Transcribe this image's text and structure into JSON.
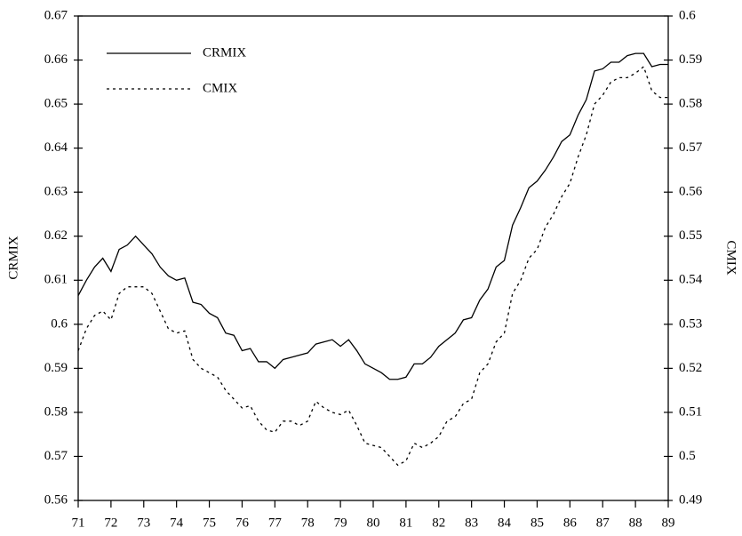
{
  "chart_data": {
    "type": "line",
    "x": [
      71,
      71.25,
      71.5,
      71.75,
      72,
      72.25,
      72.5,
      72.75,
      73,
      73.25,
      73.5,
      73.75,
      74,
      74.25,
      74.5,
      74.75,
      75,
      75.25,
      75.5,
      75.75,
      76,
      76.25,
      76.5,
      76.75,
      77,
      77.25,
      77.5,
      77.75,
      78,
      78.25,
      78.5,
      78.75,
      79,
      79.25,
      79.5,
      79.75,
      80,
      80.25,
      80.5,
      80.75,
      81,
      81.25,
      81.5,
      81.75,
      82,
      82.25,
      82.5,
      82.75,
      83,
      83.25,
      83.5,
      83.75,
      84,
      84.25,
      84.5,
      84.75,
      85,
      85.25,
      85.5,
      85.75,
      86,
      86.25,
      86.5,
      86.75,
      87,
      87.25,
      87.5,
      87.75,
      88,
      88.25,
      88.5,
      88.75,
      89
    ],
    "series": [
      {
        "name": "CRMIX",
        "color": "#000000",
        "style": "solid",
        "values": [
          0.6065,
          0.61,
          0.613,
          0.615,
          0.612,
          0.617,
          0.618,
          0.62,
          0.618,
          0.616,
          0.613,
          0.611,
          0.61,
          0.6105,
          0.605,
          0.6045,
          0.6025,
          0.6015,
          0.598,
          0.5975,
          0.594,
          0.5945,
          0.5915,
          0.5915,
          0.59,
          0.592,
          0.5925,
          0.593,
          0.5935,
          0.5955,
          0.596,
          0.5965,
          0.595,
          0.5965,
          0.594,
          0.591,
          0.59,
          0.589,
          0.5875,
          0.5875,
          0.588,
          0.591,
          0.591,
          0.5925,
          0.595,
          0.5965,
          0.598,
          0.601,
          0.6015,
          0.6055,
          0.608,
          0.613,
          0.6145,
          0.6225,
          0.6265,
          0.631,
          0.6325,
          0.635,
          0.638,
          0.6415,
          0.643,
          0.6475,
          0.651,
          0.6575,
          0.658,
          0.6595,
          0.6595,
          0.661,
          0.6615,
          0.6615,
          0.6585,
          0.659,
          0.659
        ]
      },
      {
        "name": "CMIX",
        "color": "#000000",
        "style": "dashed",
        "axis": "y2",
        "values": [
          0.524,
          0.529,
          0.532,
          0.533,
          0.531,
          0.537,
          0.5385,
          0.5385,
          0.5385,
          0.537,
          0.533,
          0.529,
          0.528,
          0.5285,
          0.522,
          0.52,
          0.519,
          0.518,
          0.515,
          0.513,
          0.511,
          0.5115,
          0.508,
          0.506,
          0.5055,
          0.508,
          0.508,
          0.507,
          0.508,
          0.5125,
          0.511,
          0.51,
          0.5095,
          0.5105,
          0.507,
          0.503,
          0.5025,
          0.502,
          0.5,
          0.498,
          0.499,
          0.503,
          0.502,
          0.503,
          0.5045,
          0.508,
          0.509,
          0.512,
          0.513,
          0.519,
          0.521,
          0.526,
          0.528,
          0.537,
          0.54,
          0.545,
          0.547,
          0.552,
          0.555,
          0.559,
          0.562,
          0.568,
          0.573,
          0.58,
          0.582,
          0.585,
          0.586,
          0.586,
          0.587,
          0.5885,
          0.583,
          0.5815,
          0.5815
        ]
      }
    ],
    "y_label": "CRMIX",
    "y2_label": "CMIX",
    "xlim": [
      71,
      89
    ],
    "xticks": [
      71,
      72,
      73,
      74,
      75,
      76,
      77,
      78,
      79,
      80,
      81,
      82,
      83,
      84,
      85,
      86,
      87,
      88,
      89
    ],
    "ylim": [
      0.56,
      0.67
    ],
    "yticks": [
      0.56,
      0.57,
      0.58,
      0.59,
      0.6,
      0.61,
      0.62,
      0.63,
      0.64,
      0.65,
      0.66,
      0.67
    ],
    "y2lim": [
      0.49,
      0.6
    ],
    "y2ticks": [
      0.49,
      0.5,
      0.51,
      0.52,
      0.53,
      0.54,
      0.55,
      0.56,
      0.57,
      0.58,
      0.59,
      0.6
    ],
    "legend": "upper left"
  }
}
